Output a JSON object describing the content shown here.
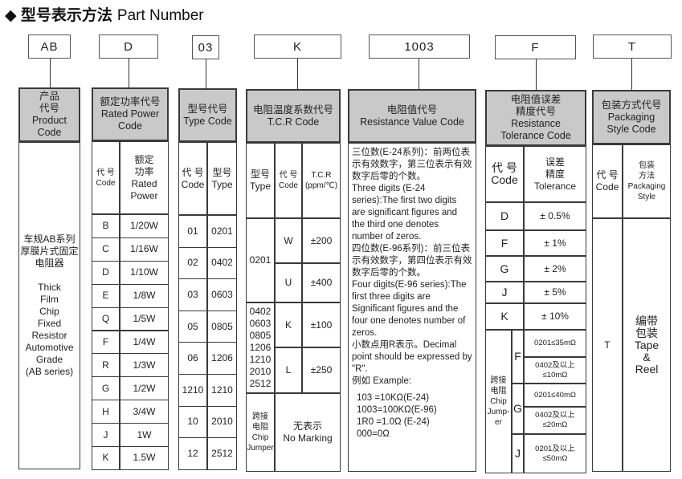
{
  "title": {
    "cn": "◆ 型号表示方法",
    "en": "Part Number"
  },
  "codes": [
    "AB",
    "D",
    "03",
    "K",
    "1003",
    "F",
    "T"
  ],
  "product": {
    "header": "产品\n代号\nProduct\nCode",
    "description": "车规AB系列\n厚膜片式固定\n电阻器\n\nThick\nFilm\nChip\nFixed\nResistor\nAutomotive\nGrade\n(AB series)"
  },
  "rated_power": {
    "header": "额定功率代号\nRated Power\nCode",
    "col_code": "代 号\nCode",
    "col_power": "额定\n功率\nRated\nPower",
    "rows": [
      {
        "code": "B",
        "power": "1/20W"
      },
      {
        "code": "C",
        "power": "1/16W"
      },
      {
        "code": "D",
        "power": "1/10W"
      },
      {
        "code": "E",
        "power": "1/8W"
      },
      {
        "code": "Q",
        "power": "1/5W"
      },
      {
        "code": "F",
        "power": "1/4W"
      },
      {
        "code": "R",
        "power": "1/3W"
      },
      {
        "code": "G",
        "power": "1/2W"
      },
      {
        "code": "H",
        "power": "3/4W"
      },
      {
        "code": "J",
        "power": "1W"
      },
      {
        "code": "K",
        "power": "1.5W"
      }
    ]
  },
  "type_code": {
    "header": "型号代号\nType Code",
    "col_code": "代  号\nCode",
    "col_type": "型号\nType",
    "rows": [
      {
        "code": "01",
        "type": "0201"
      },
      {
        "code": "02",
        "type": "0402"
      },
      {
        "code": "03",
        "type": "0603"
      },
      {
        "code": "05",
        "type": "0805"
      },
      {
        "code": "06",
        "type": "1206"
      },
      {
        "code": "1210",
        "type": "1210"
      },
      {
        "code": "10",
        "type": "2010"
      },
      {
        "code": "12",
        "type": "2512"
      }
    ]
  },
  "tcr": {
    "header": "电阻温度系数代号\nT.C.R Code",
    "col_type": "型号\nType",
    "col_code": "代 号\nCode",
    "col_tcr": "T.C.R\n(ppm/℃)",
    "groups": [
      {
        "types": "0201",
        "rows": [
          {
            "code": "W",
            "tcr": "±200"
          },
          {
            "code": "U",
            "tcr": "±400"
          }
        ]
      },
      {
        "types": "0402\n0603\n0805\n1206\n1210\n2010\n2512",
        "rows": [
          {
            "code": "K",
            "tcr": "±100"
          },
          {
            "code": "L",
            "tcr": "±250"
          }
        ]
      }
    ],
    "jumper_label": "跨接\n电阻\nChip\nJumper",
    "jumper_value": "无表示\nNo Marking"
  },
  "resistance": {
    "header": "电阻值代号\nResistance Value Code",
    "paragraphs": [
      "三位数(E-24系列)：前两位表示有效数字，第三位表示有效数字后零的个数。",
      "Three digits (E-24 series):The first two digits are significant figures and the third one denotes number of zeros.",
      "四位数(E-96系列)：前三位表示有效数字，第四位表示有效数字后零的个数。",
      "Four digits(E-96 series):The first three digits are Significant figures and the four one denotes number of zeros.",
      "小数点用R表示。Decimal point should be expressed by \"R\".",
      "例如 Example:"
    ],
    "examples": [
      "103 =10KΩ(E-24)",
      "1003=100KΩ(E-96)",
      "1R0 =1.0Ω (E-24)",
      "000=0Ω"
    ]
  },
  "tolerance": {
    "header": "电阻值误差\n精度代号\nResistance\nTolerance Code",
    "col_code": "代  号\nCode",
    "col_tol": "误差\n精度\nTolerance",
    "rows": [
      {
        "code": "D",
        "tol": "± 0.5%"
      },
      {
        "code": "F",
        "tol": "± 1%"
      },
      {
        "code": "G",
        "tol": "± 2%"
      },
      {
        "code": "J",
        "tol": "± 5%"
      },
      {
        "code": "K",
        "tol": "± 10%"
      }
    ],
    "jumper_label": "跨接\n电阻\nChip\nJump-\ner",
    "jumper": [
      {
        "code": "F",
        "values": [
          "0201≤35mΩ",
          "0402及以上\n≤10mΩ"
        ]
      },
      {
        "code": "G",
        "values": [
          "0201≤40mΩ",
          "0402及以上\n≤20mΩ"
        ]
      },
      {
        "code": "J",
        "values": [
          "0201及以上\n≤50mΩ"
        ]
      }
    ]
  },
  "packaging": {
    "header": "包装方式代号\nPackaging\nStyle Code",
    "col_code": "代 号\nCode",
    "col_style": "包装\n方法\nPackaging\nStyle",
    "code": "T",
    "style": "编带\n包装\nTape\n&\nReel"
  },
  "colors": {
    "header_bg": "#c9c9c9",
    "border": "#3a3a3a"
  }
}
